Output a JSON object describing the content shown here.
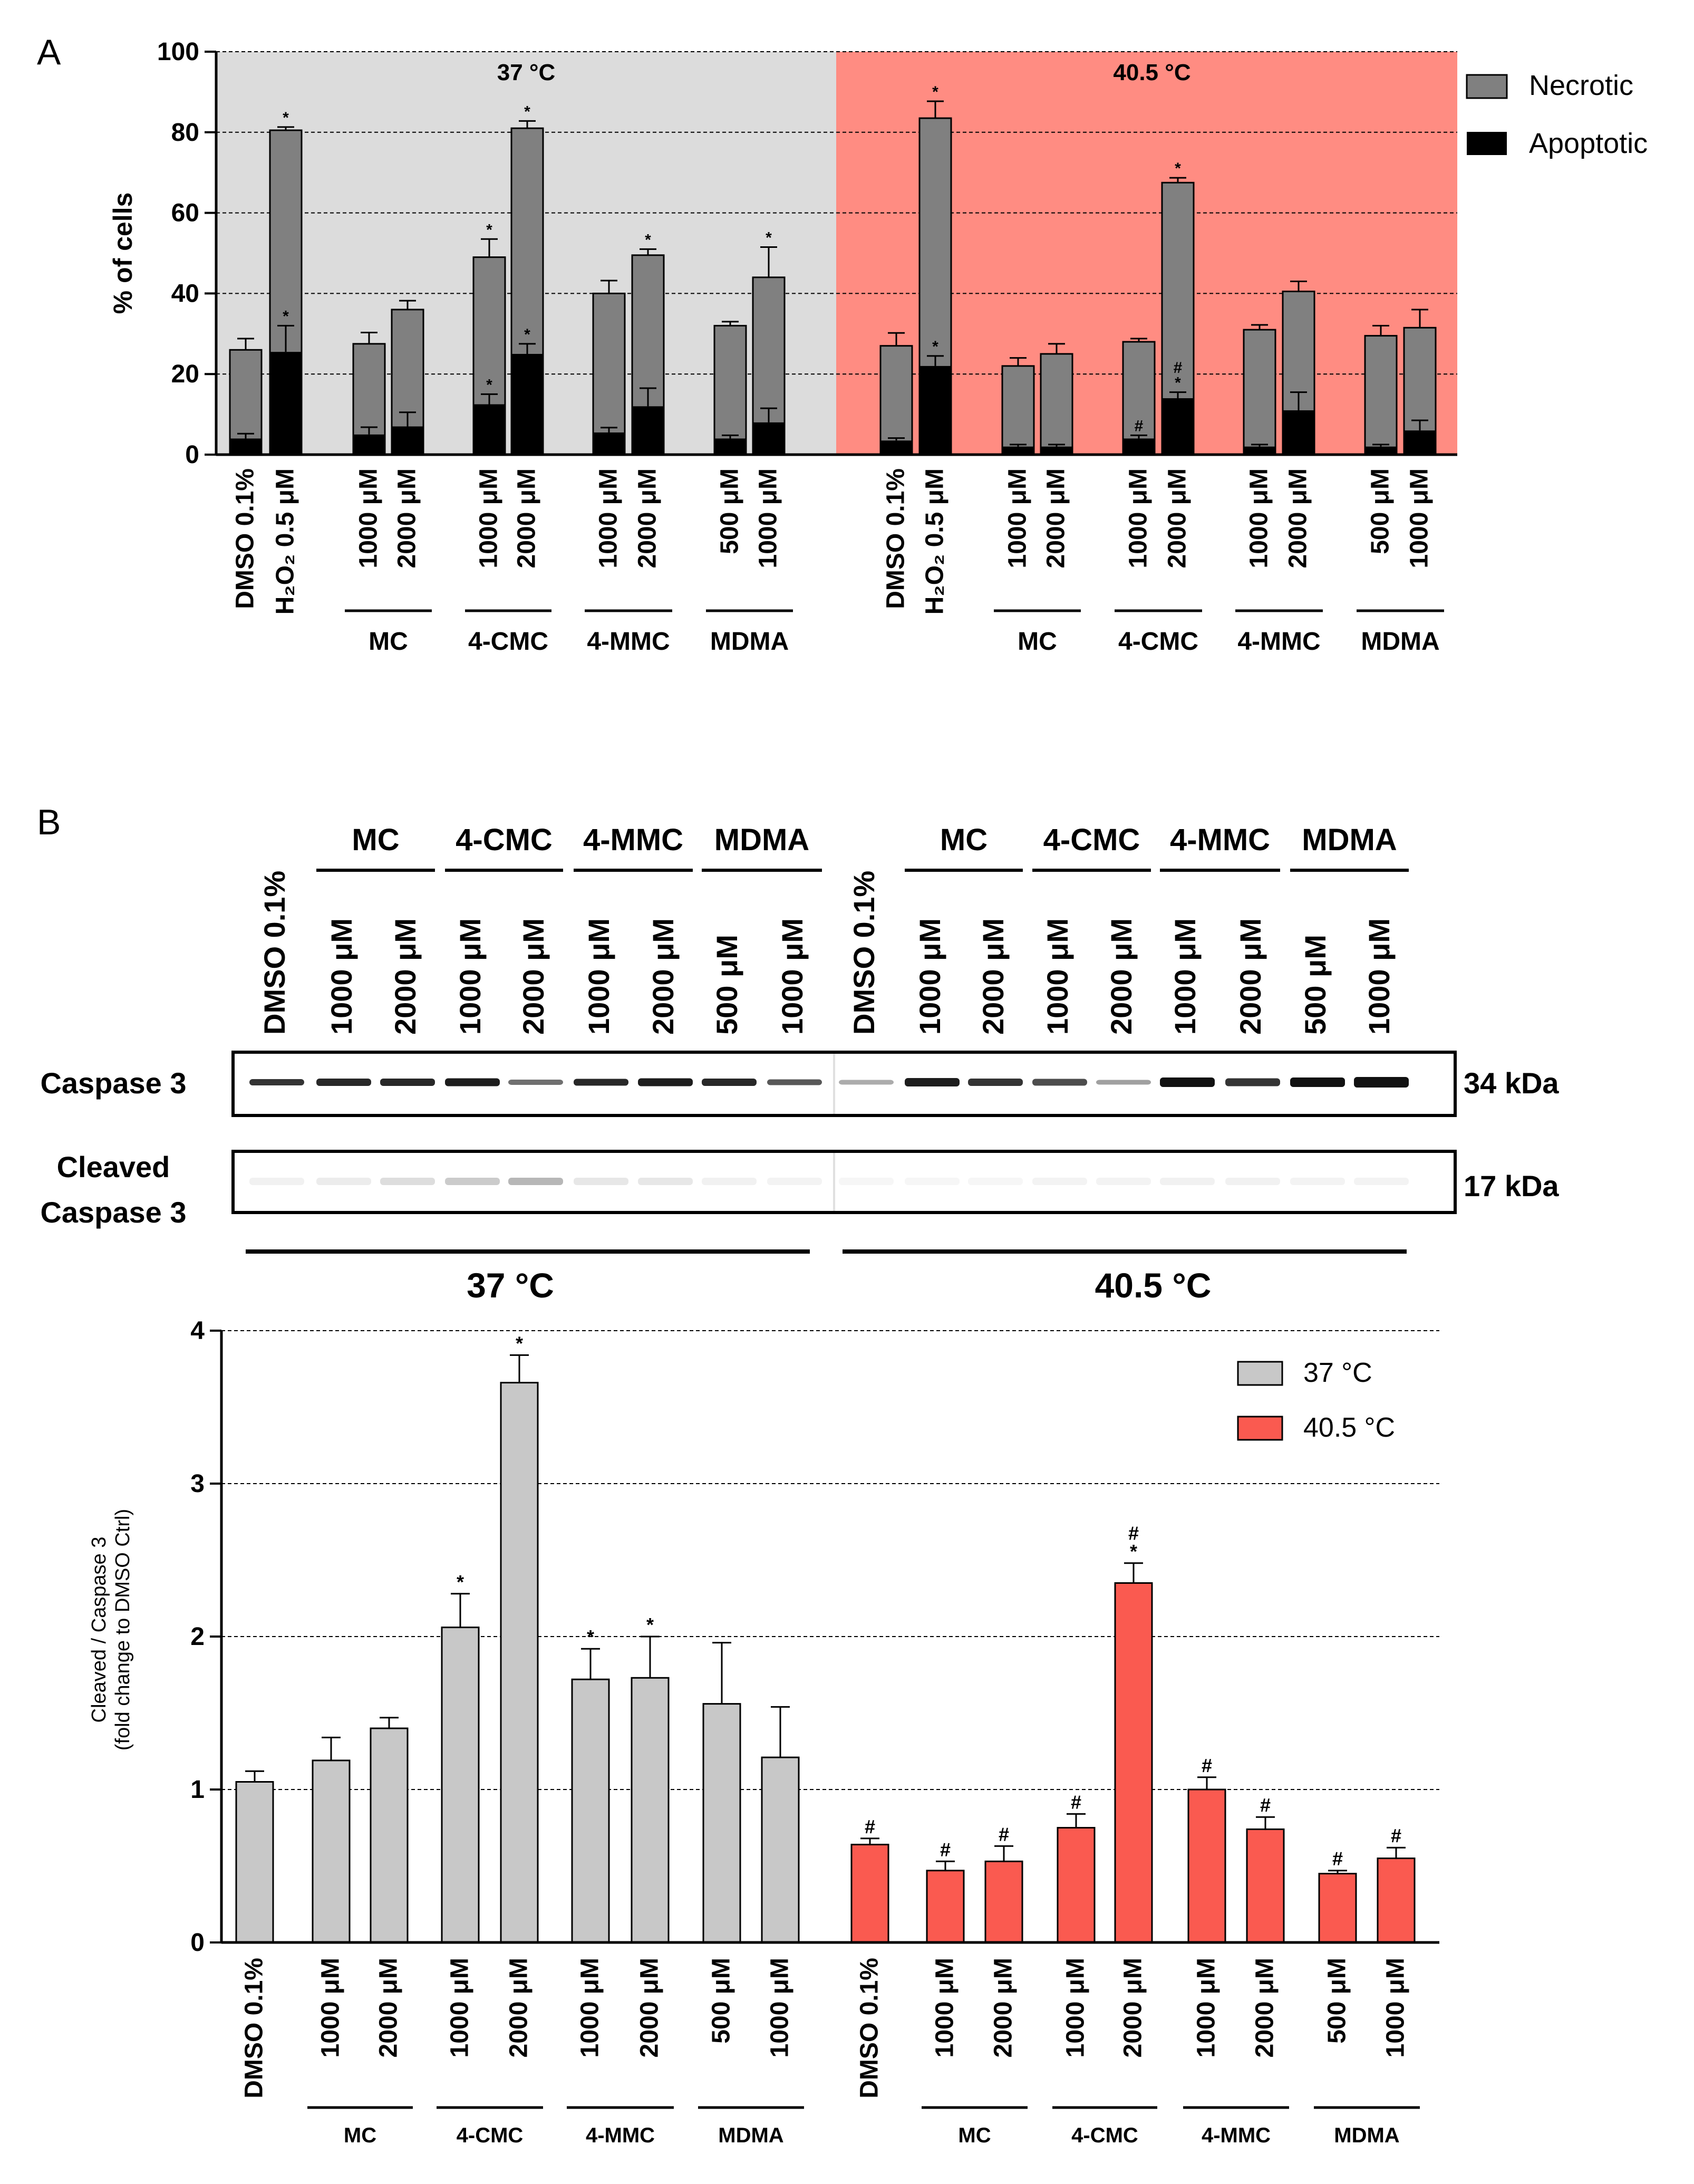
{
  "panel_a": {
    "label": "A",
    "group_labels": [
      "MC",
      "4-CMC",
      "4-MMC",
      "MDMA"
    ],
    "control_labels": [
      "DMSO 0.1%",
      "H₂O₂ 0.5 μM"
    ]
  },
  "panel_b": {
    "label": "B",
    "blot_header_groups": [
      "MC",
      "4-CMC",
      "4-MMC",
      "MDMA"
    ],
    "blot_lane_labels": [
      "DMSO 0.1%",
      "1000 μM",
      "2000 μM",
      "1000 μM",
      "2000 μM",
      "1000 μM",
      "2000 μM",
      "500 μM",
      "1000 μM",
      "DMSO 0.1%",
      "1000 μM",
      "2000 μM",
      "1000 μM",
      "2000 μM",
      "1000 μM",
      "2000 μM",
      "500 μM",
      "1000 μM"
    ],
    "rows": [
      {
        "label_lines": [
          "Caspase 3"
        ],
        "mw": "34 kDa"
      },
      {
        "label_lines": [
          "Cleaved",
          "Caspase 3"
        ],
        "mw": "17 kDa"
      }
    ],
    "temperature_labels": [
      "37 °C",
      "40.5 °C"
    ]
  },
  "chart_data": [
    {
      "type": "bar",
      "stacked": true,
      "title": "",
      "xlabel": "",
      "ylabel": "% of cells",
      "ylim": [
        0,
        100
      ],
      "yticks": [
        0,
        20,
        40,
        60,
        80,
        100
      ],
      "grid": true,
      "legend_position": "top-right",
      "panels": [
        {
          "label": "37 °C",
          "color": "#dcdcdc"
        },
        {
          "label": "40.5 °C",
          "color": "#ff8c82"
        }
      ],
      "categories": [
        "DMSO 0.1%",
        "H₂O₂ 0.5 μM",
        "1000 μM",
        "2000 μM",
        "1000 μM",
        "2000 μM",
        "1000 μM",
        "2000 μM",
        "500 μM",
        "1000 μM",
        "DMSO 0.1%",
        "H₂O₂ 0.5 μM",
        "1000 μM",
        "2000 μM",
        "1000 μM",
        "2000 μM",
        "1000 μM",
        "2000 μM",
        "500 μM",
        "1000 μM"
      ],
      "category_groups": [
        "",
        "",
        "MC",
        "MC",
        "4-CMC",
        "4-CMC",
        "4-MMC",
        "4-MMC",
        "MDMA",
        "MDMA",
        "",
        "",
        "MC",
        "MC",
        "4-CMC",
        "4-CMC",
        "4-MMC",
        "4-MMC",
        "MDMA",
        "MDMA"
      ],
      "series": [
        {
          "name": "Apoptotic",
          "color": "#000000",
          "values": [
            4,
            25.5,
            5,
            7,
            12.5,
            25,
            5.5,
            12,
            4,
            8,
            3.5,
            22,
            2,
            2,
            4,
            14,
            2,
            11,
            2,
            6
          ],
          "errors": [
            1.2,
            6.5,
            1.8,
            3.5,
            2.5,
            2.5,
            1.2,
            4.5,
            0.8,
            3.5,
            0.6,
            2.5,
            0.5,
            0.5,
            0.8,
            1.5,
            0.5,
            4.5,
            0.5,
            2.5
          ],
          "annotations": [
            "",
            "*",
            "",
            "",
            "*",
            "*",
            "",
            "",
            "",
            "",
            "",
            "*",
            "",
            "",
            "#",
            "#\n*",
            "",
            "",
            "",
            ""
          ]
        },
        {
          "name": "Necrotic",
          "color": "#808080",
          "totals": [
            26,
            80.5,
            27.5,
            36,
            49,
            81,
            40,
            49.5,
            32,
            44,
            27,
            83.5,
            22,
            25,
            28,
            67.5,
            31,
            40.5,
            29.5,
            31.5
          ],
          "errors": [
            2.8,
            0.8,
            2.8,
            2.2,
            4.5,
            1.8,
            3.2,
            1.5,
            1,
            7.5,
            3.2,
            4.2,
            2,
            2.5,
            0.8,
            1.2,
            1.2,
            2.5,
            2.5,
            4.5
          ],
          "annotations": [
            "",
            "*",
            "",
            "",
            "*",
            "*",
            "",
            "*",
            "",
            "*",
            "",
            "*",
            "",
            "",
            "",
            "*",
            "",
            "",
            "",
            ""
          ]
        }
      ]
    },
    {
      "type": "bar",
      "title": "",
      "xlabel": "",
      "ylabel": "Cleaved / Caspase 3 (fold change to DMSO Ctrl)",
      "ylim": [
        0,
        4
      ],
      "yticks": [
        0,
        1,
        2,
        3,
        4
      ],
      "grid": true,
      "legend_position": "top-right",
      "categories": [
        "DMSO 0.1%",
        "1000 μM",
        "2000 μM",
        "1000 μM",
        "2000 μM",
        "1000 μM",
        "2000 μM",
        "500 μM",
        "1000 μM"
      ],
      "category_groups": [
        "",
        "MC",
        "MC",
        "4-CMC",
        "4-CMC",
        "4-MMC",
        "4-MMC",
        "MDMA",
        "MDMA"
      ],
      "series": [
        {
          "name": "37 °C",
          "color": "#c8c8c8",
          "values": [
            1.05,
            1.19,
            1.4,
            2.06,
            3.66,
            1.72,
            1.73,
            1.56,
            1.21
          ],
          "errors": [
            0.07,
            0.15,
            0.07,
            0.22,
            0.18,
            0.2,
            0.27,
            0.4,
            0.33
          ],
          "annotations": [
            "",
            "",
            "",
            "*",
            "*",
            "*",
            "*",
            "",
            ""
          ]
        },
        {
          "name": "40.5 °C",
          "color": "#fa5a50",
          "values": [
            0.64,
            0.47,
            0.53,
            0.75,
            2.35,
            1.0,
            0.74,
            0.45,
            0.55
          ],
          "errors": [
            0.04,
            0.06,
            0.1,
            0.09,
            0.13,
            0.08,
            0.08,
            0.02,
            0.07
          ],
          "annotations": [
            "#",
            "#",
            "#",
            "#",
            "#\n*",
            "#",
            "#",
            "#",
            "#"
          ]
        }
      ]
    }
  ]
}
